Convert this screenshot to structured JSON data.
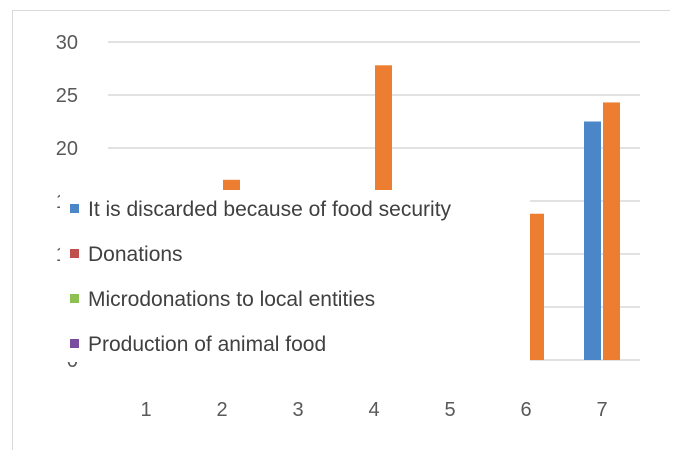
{
  "chart_data": {
    "type": "bar",
    "categories": [
      "1",
      "2",
      "3",
      "4",
      "5",
      "6",
      "7"
    ],
    "ylim": [
      0,
      30
    ],
    "yticks": [
      "0",
      "5",
      "10",
      "15",
      "20",
      "25",
      "30"
    ],
    "grid": true,
    "legend_position": "left overlay",
    "series": [
      {
        "name": "It is discarded because of food security",
        "color": "#4a86c8",
        "values": [
          0,
          0,
          0,
          0,
          0,
          0,
          22.5
        ]
      },
      {
        "name": "Donations",
        "color": "#ed7d31",
        "values": [
          0,
          17,
          0,
          27.8,
          0,
          13.8,
          24.3
        ]
      },
      {
        "name": "Microdonations to local entities",
        "color": "#8cc152",
        "values": [
          0,
          0,
          0,
          0,
          0,
          0,
          0
        ]
      },
      {
        "name": "Production of animal food",
        "color": "#7a4ca0",
        "values": [
          0,
          0,
          0,
          0,
          0,
          0,
          0
        ]
      }
    ],
    "legend_marker_colors": [
      "#4a86c8",
      "#c0504d",
      "#8cc152",
      "#7a4ca0"
    ]
  }
}
